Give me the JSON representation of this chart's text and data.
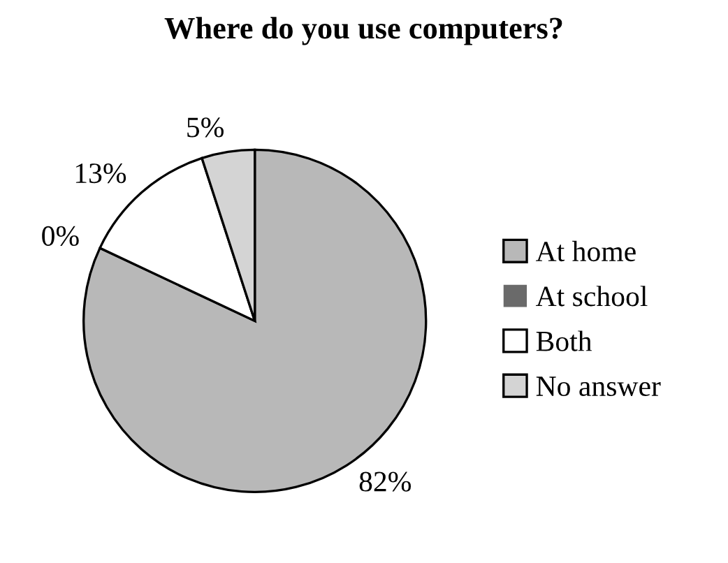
{
  "chart_data": {
    "type": "pie",
    "title": "Where do you use computers?",
    "categories": [
      "At home",
      "At school",
      "Both",
      "No answer"
    ],
    "values": [
      82,
      0,
      13,
      5
    ],
    "value_labels": [
      "82%",
      "0%",
      "13%",
      "5%"
    ],
    "colors": [
      "#b8b8b8",
      "#6a6a6a",
      "#ffffff",
      "#d4d4d4"
    ],
    "legend": "right"
  }
}
